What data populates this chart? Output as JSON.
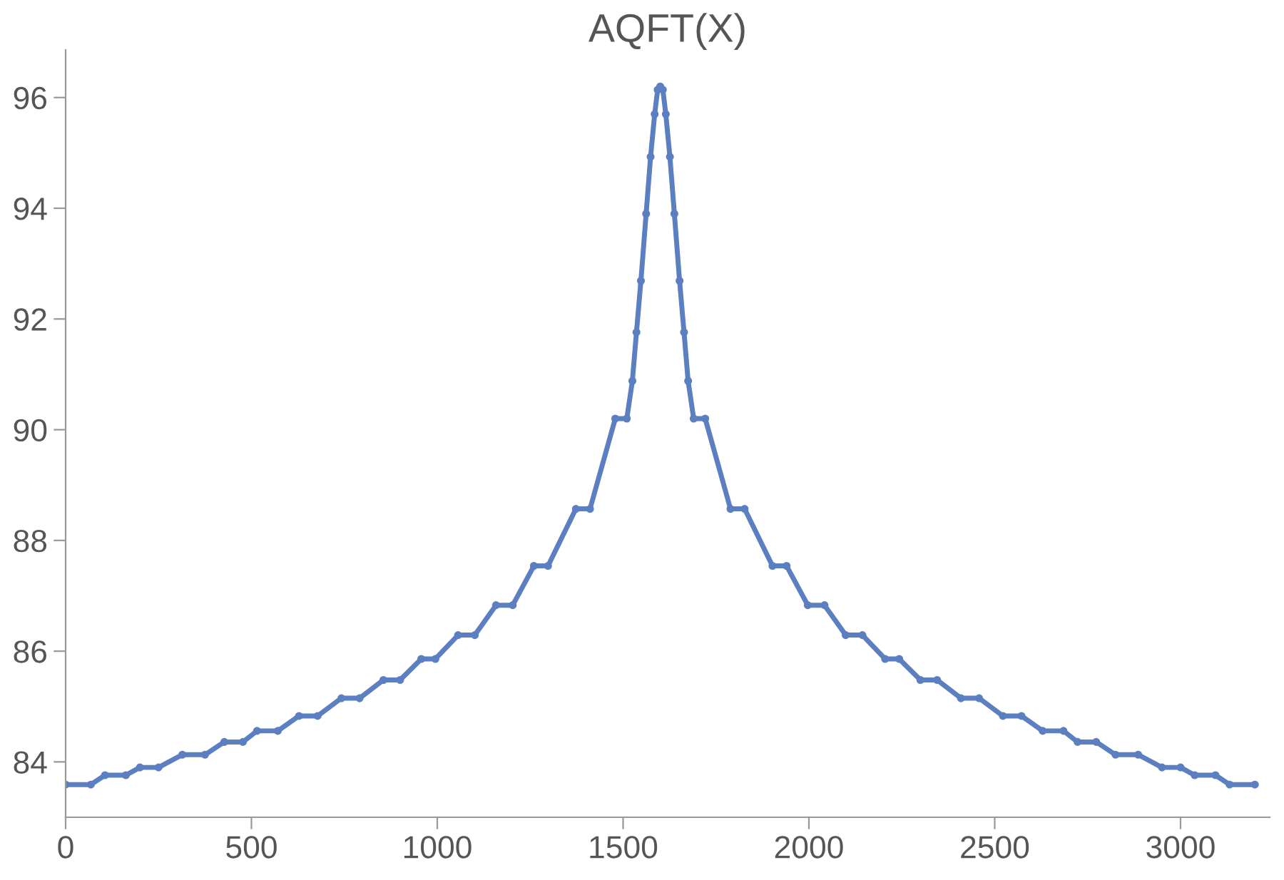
{
  "chart_data": {
    "type": "line",
    "title": "AQFT(X)",
    "x": [
      0,
      68,
      106,
      162,
      200,
      250,
      314,
      375,
      427,
      477,
      515,
      571,
      628,
      678,
      742,
      791,
      855,
      900,
      957,
      995,
      1056,
      1101,
      1158,
      1203,
      1260,
      1298,
      1373,
      1411,
      1479,
      1510,
      1525,
      1536,
      1548,
      1562,
      1574,
      1585,
      1593,
      1600,
      1607,
      1615,
      1626,
      1638,
      1652,
      1664,
      1675,
      1690,
      1721,
      1789,
      1827,
      1902,
      1940,
      1997,
      2042,
      2099,
      2144,
      2205,
      2243,
      2300,
      2345,
      2409,
      2458,
      2522,
      2572,
      2629,
      2685,
      2723,
      2773,
      2825,
      2886,
      2950,
      3000,
      3038,
      3094,
      3132,
      3200
    ],
    "series": [
      {
        "color": "#5b7fc0",
        "values": [
          83.59,
          83.59,
          83.76,
          83.76,
          83.9,
          83.9,
          84.13,
          84.13,
          84.36,
          84.36,
          84.56,
          84.56,
          84.83,
          84.83,
          85.15,
          85.15,
          85.48,
          85.48,
          85.86,
          85.86,
          86.29,
          86.29,
          86.83,
          86.83,
          87.54,
          87.54,
          88.57,
          88.57,
          90.2,
          90.2,
          90.88,
          91.76,
          92.69,
          93.9,
          94.93,
          95.7,
          96.14,
          96.2,
          96.14,
          95.7,
          94.93,
          93.9,
          92.69,
          91.76,
          90.88,
          90.2,
          90.2,
          88.57,
          88.57,
          87.54,
          87.54,
          86.83,
          86.83,
          86.29,
          86.29,
          85.86,
          85.86,
          85.48,
          85.48,
          85.15,
          85.15,
          84.83,
          84.83,
          84.56,
          84.56,
          84.36,
          84.36,
          84.13,
          84.13,
          83.9,
          83.9,
          83.76,
          83.76,
          83.59,
          83.59
        ]
      }
    ],
    "xlim": [
      0,
      3240
    ],
    "ylim": [
      83,
      96.86
    ],
    "xticks": [
      0,
      500,
      1000,
      1500,
      2000,
      2500,
      3000
    ],
    "yticks": [
      84,
      86,
      88,
      90,
      92,
      94,
      96
    ],
    "marker": "circle",
    "grid": false,
    "legend": false
  }
}
